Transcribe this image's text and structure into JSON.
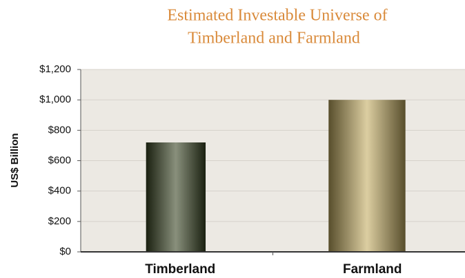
{
  "chart_data": {
    "type": "bar",
    "title": [
      "Estimated Investable Universe of",
      "Timberland and Farmland"
    ],
    "ylabel": "US$ Billion",
    "categories": [
      "Timberland",
      "Farmland"
    ],
    "values": [
      720,
      1000
    ],
    "colors": [
      "#3a4624",
      "#c4ad62"
    ],
    "ylim": [
      0,
      1200
    ],
    "yticks": [
      {
        "value": 0,
        "label": "$0"
      },
      {
        "value": 200,
        "label": "$200"
      },
      {
        "value": 400,
        "label": "$400"
      },
      {
        "value": 600,
        "label": "$600"
      },
      {
        "value": 800,
        "label": "$800"
      },
      {
        "value": 1000,
        "label": "$1,000"
      },
      {
        "value": 1200,
        "label": "$1,200"
      }
    ],
    "grid": true
  }
}
